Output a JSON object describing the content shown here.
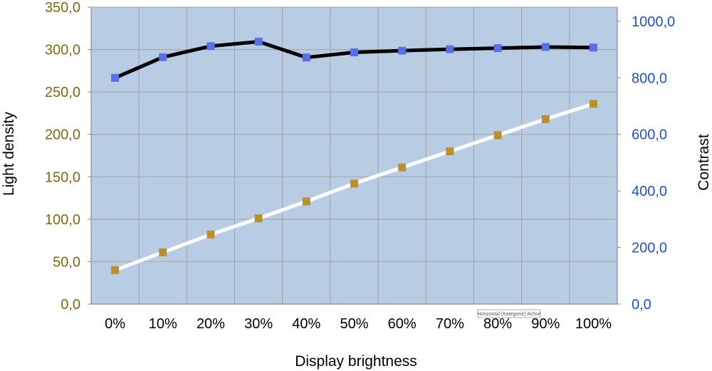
{
  "chart_data": {
    "type": "line",
    "categories": [
      "0%",
      "10%",
      "20%",
      "30%",
      "40%",
      "50%",
      "60%",
      "70%",
      "80%",
      "90%",
      "100%"
    ],
    "xlabel": "Display brightness",
    "ylabel_left": "Light density",
    "ylabel_right": "Contrast",
    "ylim_left": [
      0,
      350
    ],
    "ylim_right": [
      0,
      1050
    ],
    "yticks_left": [
      "0,0",
      "50,0",
      "100,0",
      "150,0",
      "200,0",
      "250,0",
      "300,0",
      "350,0"
    ],
    "yticks_right": [
      "0,0",
      "200,0",
      "400,0",
      "600,0",
      "800,0",
      "1000,0"
    ],
    "grid": true,
    "series": [
      {
        "axis": "right",
        "values": [
          800,
          873,
          912,
          928,
          872,
          890,
          896,
          901,
          905,
          909,
          907
        ],
        "line_color": "#000000",
        "marker_color": "#5b6ee8"
      },
      {
        "axis": "left",
        "values": [
          40,
          61,
          82,
          101,
          121,
          142,
          161,
          180,
          199,
          218,
          236
        ],
        "line_color": "#ffffff",
        "marker_color": "#b8912e"
      }
    ],
    "tooltip_text": "Horizontal (Kategorie) Achse"
  },
  "colors": {
    "plot_background": "#b8cce4",
    "gridline": "#a3a3a3",
    "left_tick_color": "#7a6a12",
    "right_tick_color": "#1f4fd8",
    "axis_line": "#8c8c8c"
  }
}
